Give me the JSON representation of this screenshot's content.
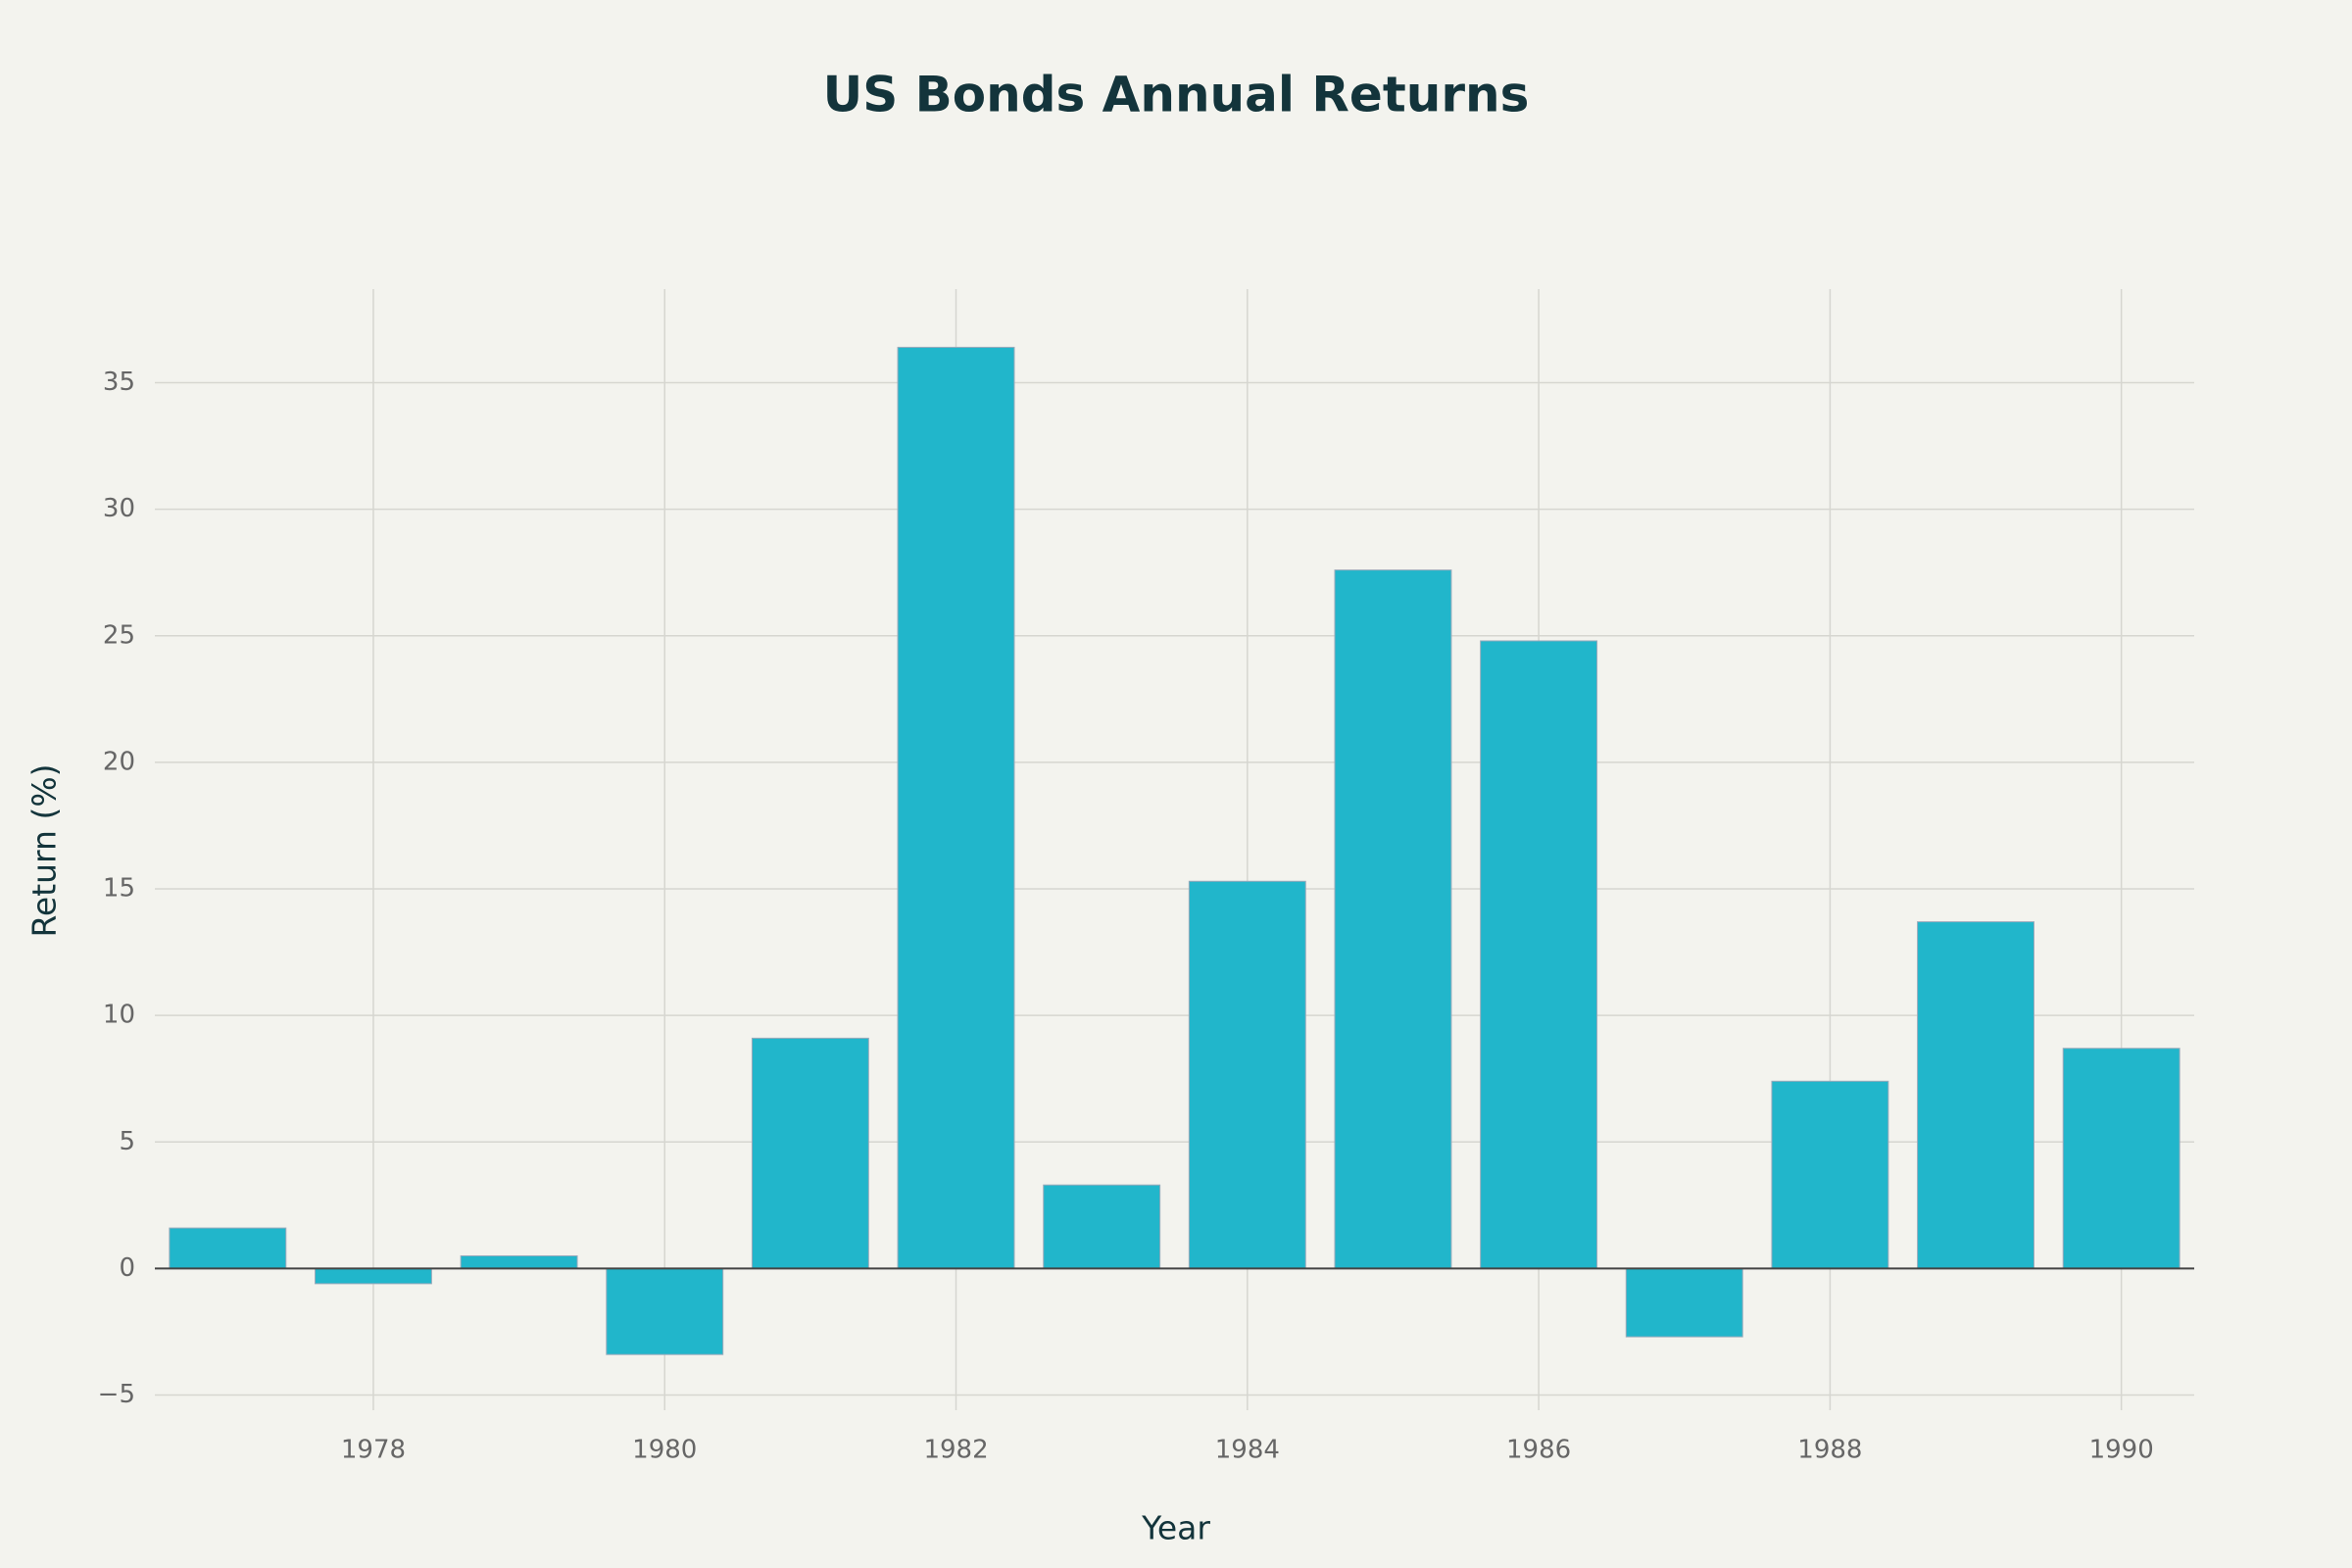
{
  "chart_data": {
    "type": "bar",
    "title": "US Bonds Annual Returns",
    "x_label": "Year",
    "y_label": "Return (%)",
    "x": [
      1977,
      1978,
      1979,
      1980,
      1981,
      1982,
      1983,
      1984,
      1985,
      1986,
      1987,
      1988,
      1989,
      1990
    ],
    "values": [
      1.6,
      -0.6,
      0.5,
      -3.4,
      9.1,
      36.4,
      3.3,
      15.3,
      27.6,
      24.8,
      -2.7,
      7.4,
      13.7,
      8.7
    ],
    "color": "#21b6cb",
    "xlim": [
      1976.5,
      1990.5
    ],
    "xticks": [
      1978,
      1980,
      1982,
      1984,
      1986,
      1988,
      1990
    ],
    "ylim": [
      -5.6,
      38.7
    ],
    "yticks": [
      {
        "value": -5,
        "label": "−5"
      },
      0,
      5,
      10,
      15,
      20,
      25,
      30,
      35
    ],
    "grid": true
  }
}
